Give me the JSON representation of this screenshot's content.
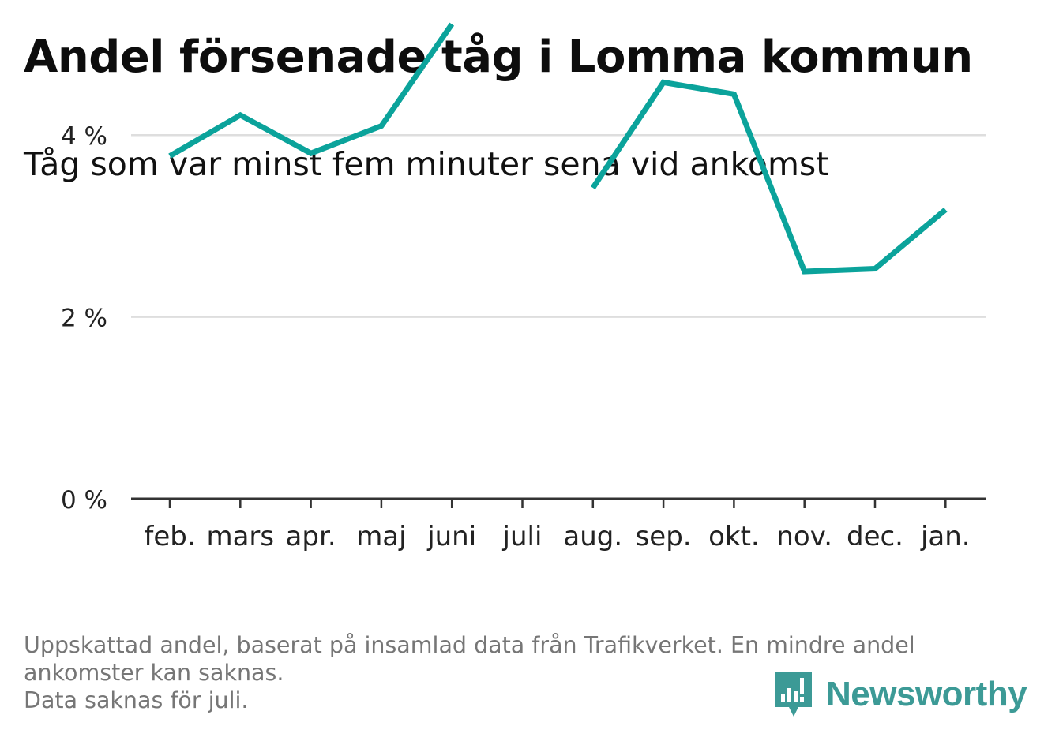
{
  "title": "Andel försenade tåg i Lomma kommun",
  "subtitle": "Tåg som var minst fem minuter sena vid ankomst",
  "note": {
    "line1": "Uppskattad andel, baserat på insamlad data från Trafikverket. En mindre andel",
    "line2": "ankomster kan saknas.",
    "line3": "Data saknas för juli."
  },
  "brand": {
    "name": "Newsworthy",
    "icon": "newsworthy-logo-icon",
    "color": "#3c9a96"
  },
  "colors": {
    "line": "#0ba39b",
    "grid": "#dedede",
    "axis": "#333333",
    "tick_text": "#222222"
  },
  "chart_data": {
    "type": "line",
    "categories": [
      "feb.",
      "mars",
      "apr.",
      "maj",
      "juni",
      "juli",
      "aug.",
      "sep.",
      "okt.",
      "nov.",
      "dec.",
      "jan."
    ],
    "series": [
      {
        "values": [
          3.77,
          4.22,
          3.8,
          4.1,
          5.22,
          null,
          3.42,
          4.58,
          4.45,
          2.5,
          2.53,
          3.18
        ]
      }
    ],
    "ylim": [
      0,
      5.5
    ],
    "yticks": [
      0,
      2,
      4
    ],
    "ytick_labels": [
      "0 %",
      "2 %",
      "4 %"
    ],
    "grid": true,
    "legend": "none",
    "xlabel": "",
    "ylabel": ""
  }
}
